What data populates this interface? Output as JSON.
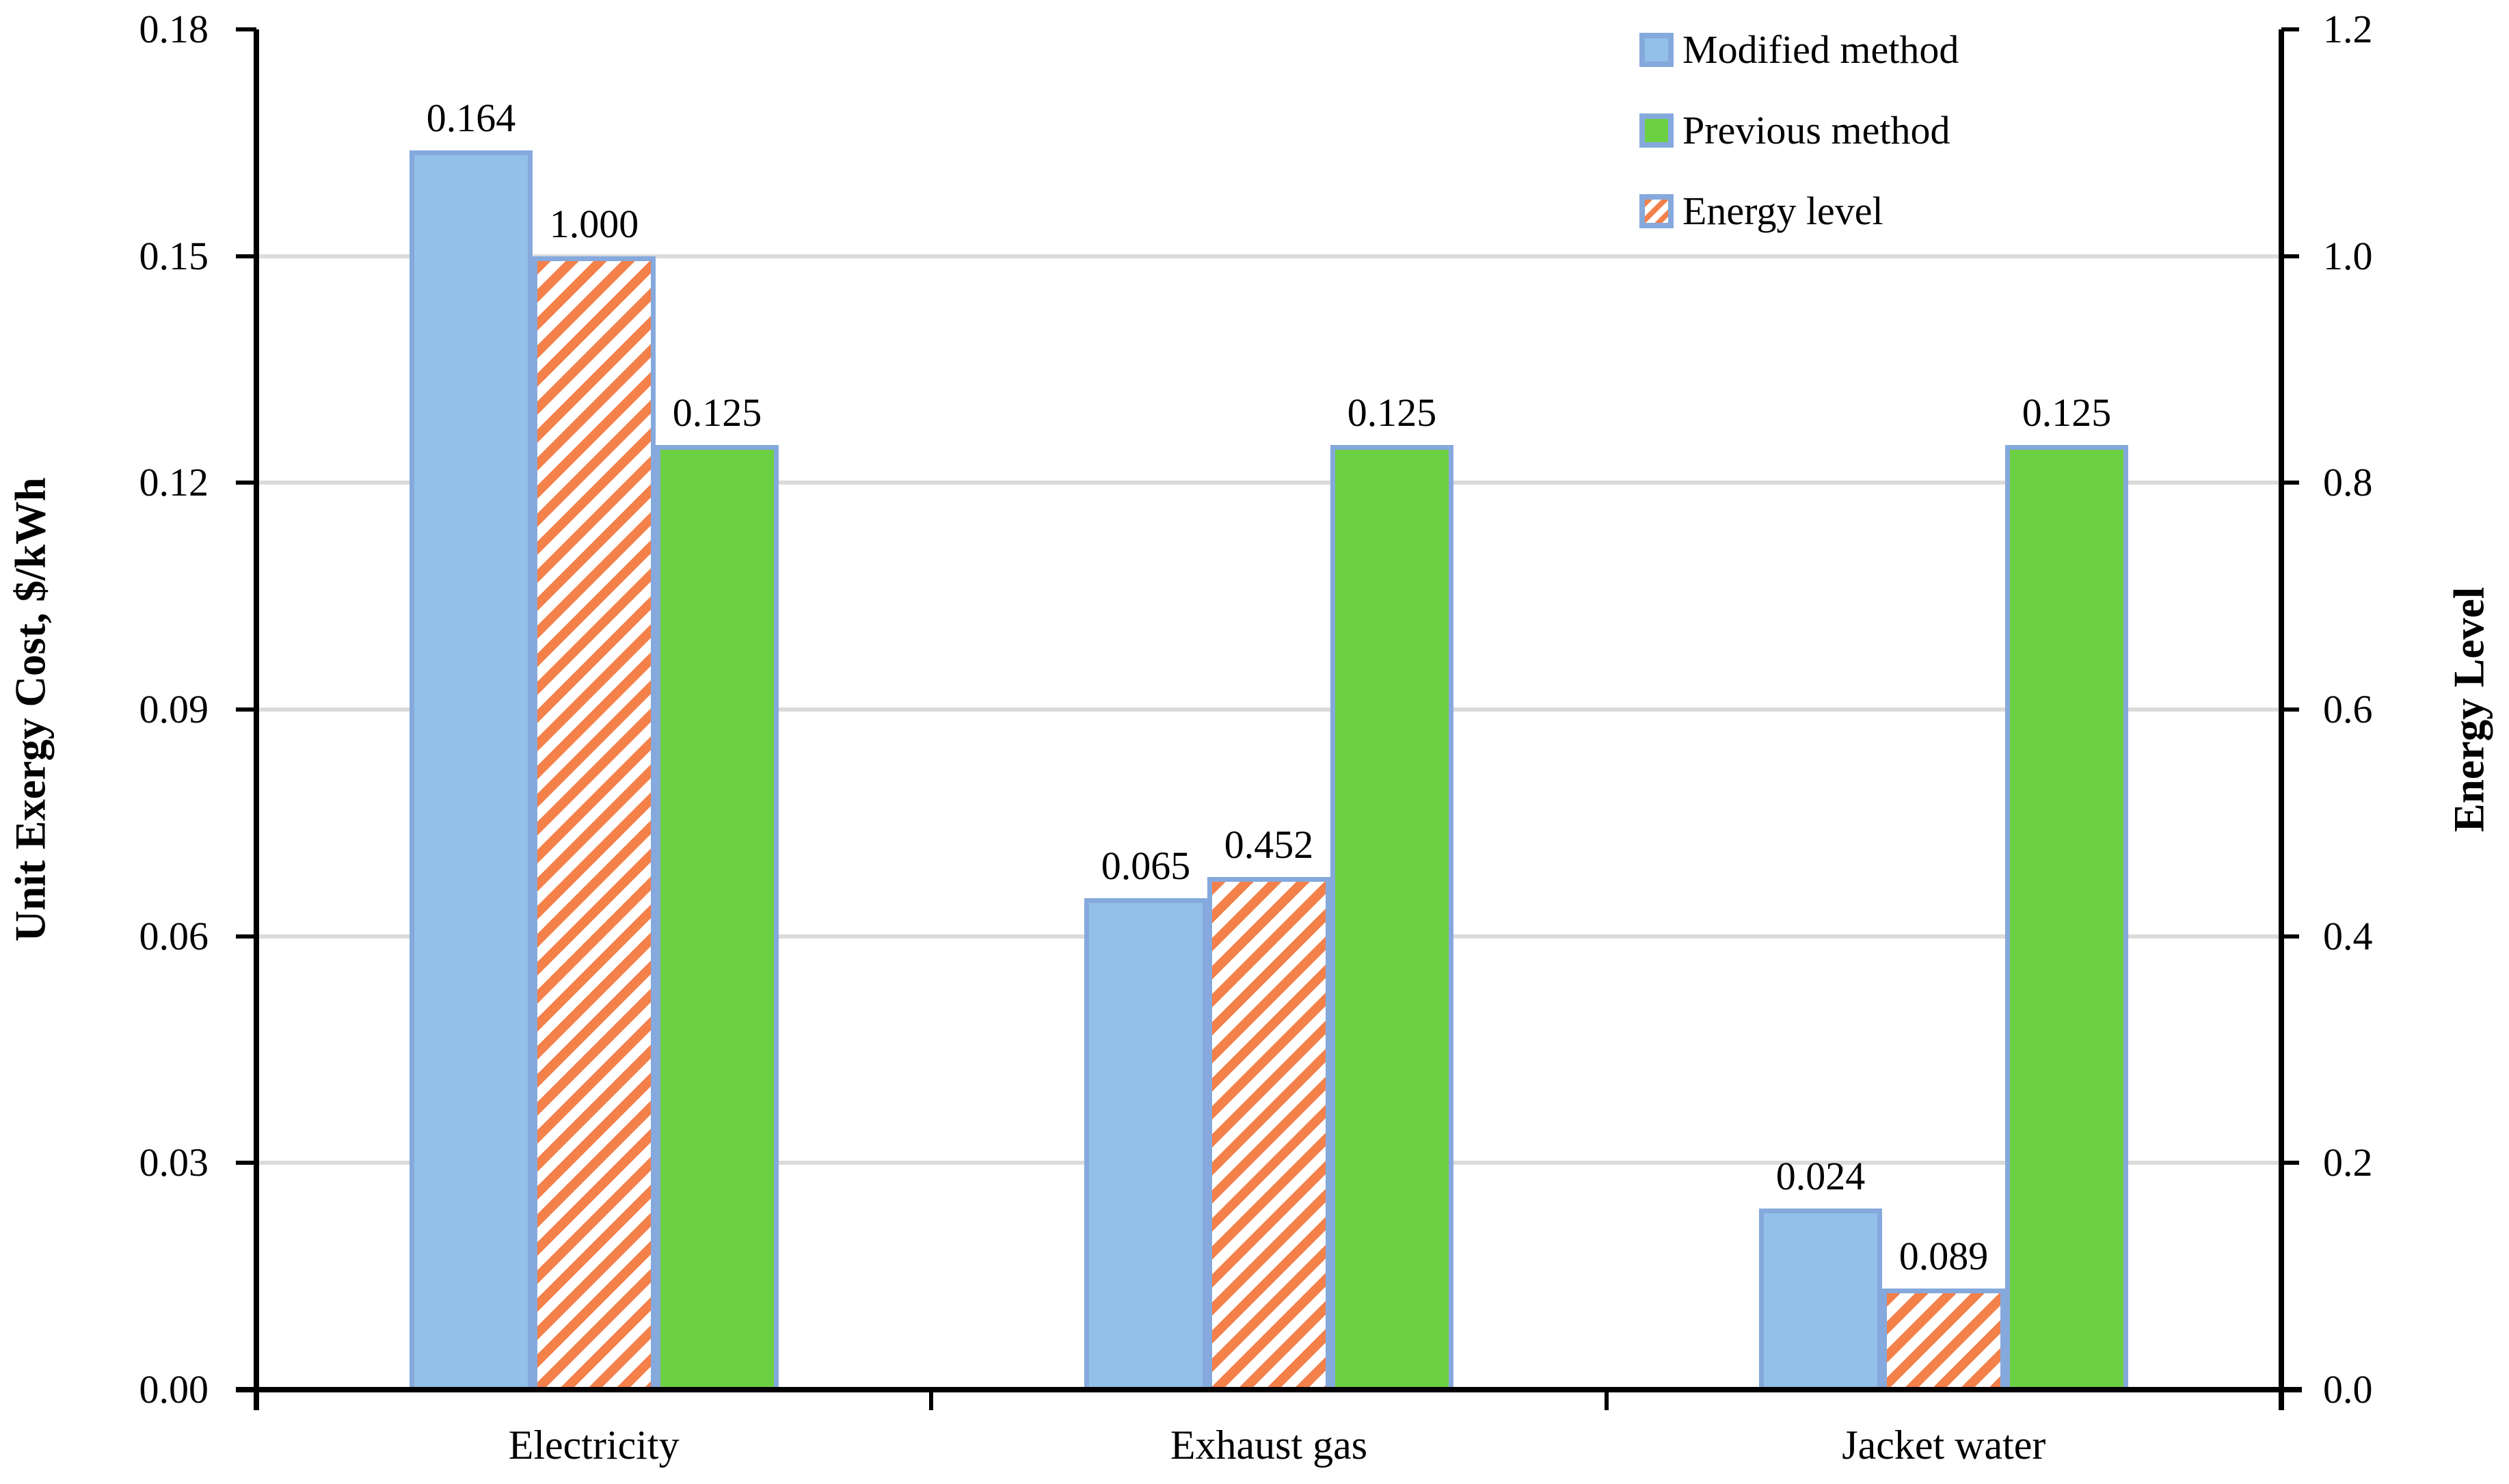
{
  "chart_data": {
    "type": "bar",
    "categories": [
      "Electricity",
      "Exhaust gas",
      "Jacket water"
    ],
    "series": [
      {
        "name": "Modified method",
        "axis": "left",
        "style": "solid",
        "fill": "#92C0E8",
        "border": "#85A9DC",
        "values": [
          0.164,
          0.065,
          0.024
        ],
        "labels": [
          "0.164",
          "0.065",
          "0.024"
        ]
      },
      {
        "name": "Energy level",
        "axis": "right",
        "style": "hatch",
        "fill": "#FFFFFF",
        "hatch_color": "#F4804A",
        "border": "#85A9DC",
        "values": [
          1.0,
          0.452,
          0.089
        ],
        "labels": [
          "1.000",
          "0.452",
          "0.089"
        ]
      },
      {
        "name": "Previous method",
        "axis": "left",
        "style": "solid",
        "fill": "#6CD043",
        "border": "#85A9DC",
        "values": [
          0.125,
          0.125,
          0.125
        ],
        "labels": [
          "0.125",
          "0.125",
          "0.125"
        ]
      }
    ],
    "left_axis": {
      "title": "Unit Exergy Cost, $/kWh",
      "min": 0.0,
      "max": 0.18,
      "tick_labels": [
        "0.18",
        "0.15",
        "0.12",
        "0.09",
        "0.06",
        "0.03",
        "0.00"
      ]
    },
    "right_axis": {
      "title": "Energy Level",
      "min": 0.0,
      "max": 1.2,
      "tick_labels": [
        "1.2",
        "1.0",
        "0.8",
        "0.6",
        "0.4",
        "0.2",
        "0.0"
      ]
    },
    "legend": {
      "position": "top-right",
      "items": [
        "Modified method",
        "Previous method",
        "Energy level"
      ]
    },
    "grid": {
      "show": true,
      "color": "#DBDBDB"
    },
    "axis_color": "#000000"
  }
}
